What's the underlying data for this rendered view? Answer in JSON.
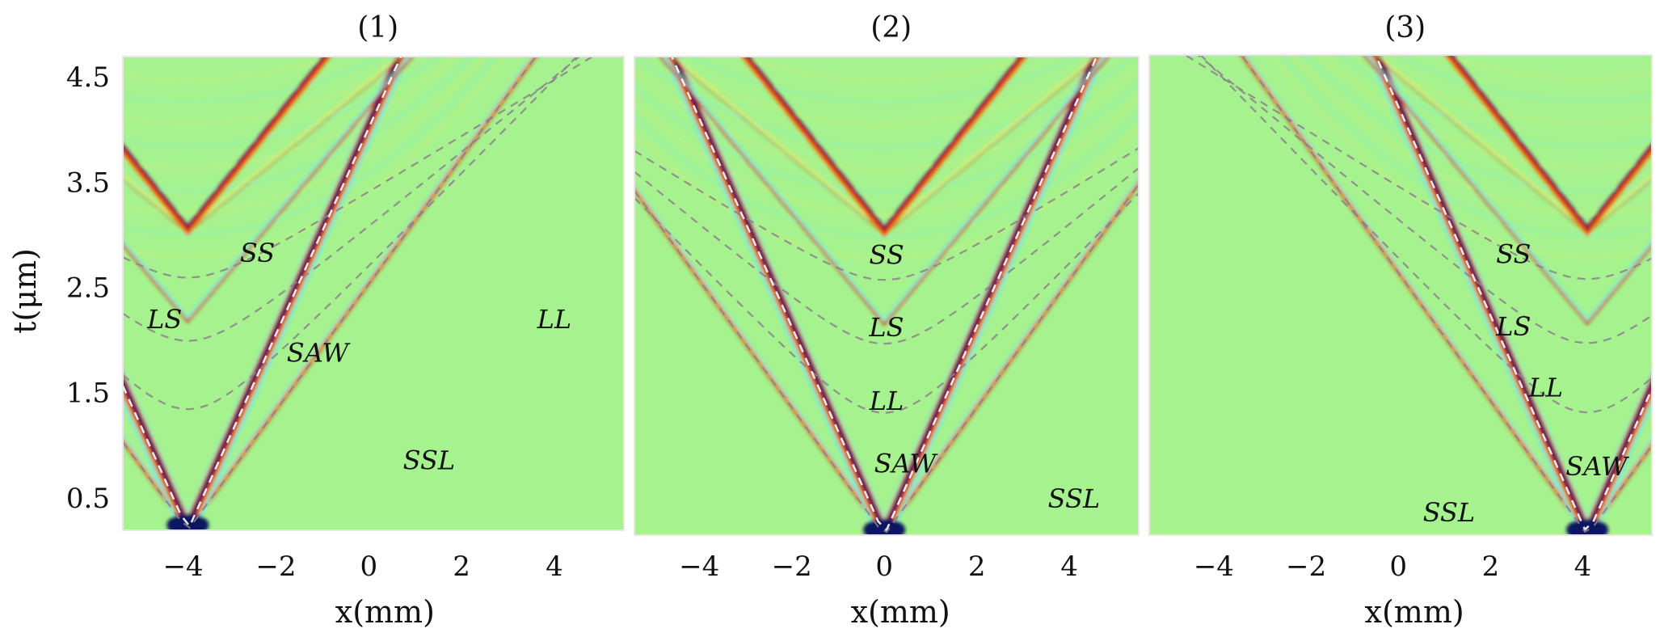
{
  "chart_data": {
    "type": "heatmap",
    "ylabel": "t(μm)",
    "y_ticks": [
      "0.5",
      "1.5",
      "2.5",
      "3.5",
      "4.5"
    ],
    "y_tick_values": [
      0.5,
      1.5,
      2.5,
      3.5,
      4.5
    ],
    "ylim": [
      0.2,
      4.7
    ],
    "colors": {
      "background": "#a6f28e",
      "dark": "#0a1560",
      "red": "#d01a0a",
      "orange": "#f08a1e",
      "cyan": "#6ef0e6",
      "yellow": "#e8ee70",
      "guide": "#8c7f8c"
    },
    "panels": [
      {
        "title": "(1)",
        "xlabel": "x(mm)",
        "x_ticks": [
          "−4",
          "−2",
          "0",
          "2",
          "4"
        ],
        "x_tick_values": [
          -4,
          -2,
          0,
          2,
          4
        ],
        "xlim": [
          -5.3,
          5.5
        ],
        "source_x": -3.9,
        "labels": [
          {
            "text": "SS",
            "x": -2.4,
            "t": 2.75
          },
          {
            "text": "LS",
            "x": -4.4,
            "t": 2.12
          },
          {
            "text": "SAW",
            "x": -1.1,
            "t": 1.8
          },
          {
            "text": "LL",
            "x": 4.0,
            "t": 2.12
          },
          {
            "text": "SSL",
            "x": 1.3,
            "t": 0.78
          }
        ],
        "arrivals": [
          {
            "wave": "SS",
            "t0": 2.6,
            "slope": 0.3
          },
          {
            "wave": "LS",
            "t0": 2.0,
            "slope": 0.4
          },
          {
            "wave": "LL",
            "t0": 1.35,
            "slope": 0.5
          },
          {
            "wave": "SAW",
            "t0": 0.2,
            "slope": 0.98
          },
          {
            "wave": "SSL",
            "t0": 0.2,
            "slope": 0.6
          }
        ]
      },
      {
        "title": "(2)",
        "xlabel": "x(mm)",
        "x_ticks": [
          "−4",
          "−2",
          "0",
          "2",
          "4"
        ],
        "x_tick_values": [
          -4,
          -2,
          0,
          2,
          4
        ],
        "xlim": [
          -5.4,
          5.5
        ],
        "source_x": 0.0,
        "labels": [
          {
            "text": "SS",
            "x": 0.05,
            "t": 2.75
          },
          {
            "text": "LS",
            "x": 0.05,
            "t": 2.07
          },
          {
            "text": "LL",
            "x": 0.05,
            "t": 1.38
          },
          {
            "text": "SAW",
            "x": 0.45,
            "t": 0.79
          },
          {
            "text": "SSL",
            "x": 4.1,
            "t": 0.46
          }
        ],
        "arrivals": [
          {
            "wave": "SS",
            "t0": 2.6,
            "slope": 0.3
          },
          {
            "wave": "LS",
            "t0": 2.0,
            "slope": 0.4
          },
          {
            "wave": "LL",
            "t0": 1.35,
            "slope": 0.5
          },
          {
            "wave": "SAW",
            "t0": 0.2,
            "slope": 0.98
          },
          {
            "wave": "SSL",
            "t0": 0.2,
            "slope": 0.6
          }
        ]
      },
      {
        "title": "(3)",
        "xlabel": "x(mm)",
        "x_ticks": [
          "−4",
          "−2",
          "0",
          "2",
          "4"
        ],
        "x_tick_values": [
          -4,
          -2,
          0,
          2,
          4
        ],
        "xlim": [
          -5.4,
          5.5
        ],
        "source_x": 4.1,
        "labels": [
          {
            "text": "SS",
            "x": 2.5,
            "t": 2.75
          },
          {
            "text": "LS",
            "x": 2.5,
            "t": 2.07
          },
          {
            "text": "LL",
            "x": 3.2,
            "t": 1.5
          },
          {
            "text": "SAW",
            "x": 4.3,
            "t": 0.76
          },
          {
            "text": "SSL",
            "x": 1.1,
            "t": 0.33
          }
        ],
        "arrivals": [
          {
            "wave": "SS",
            "t0": 2.6,
            "slope": 0.3
          },
          {
            "wave": "LS",
            "t0": 2.0,
            "slope": 0.4
          },
          {
            "wave": "LL",
            "t0": 1.35,
            "slope": 0.5
          },
          {
            "wave": "SAW",
            "t0": 0.2,
            "slope": 0.98
          },
          {
            "wave": "SSL",
            "t0": 0.2,
            "slope": 0.6
          }
        ]
      }
    ]
  }
}
